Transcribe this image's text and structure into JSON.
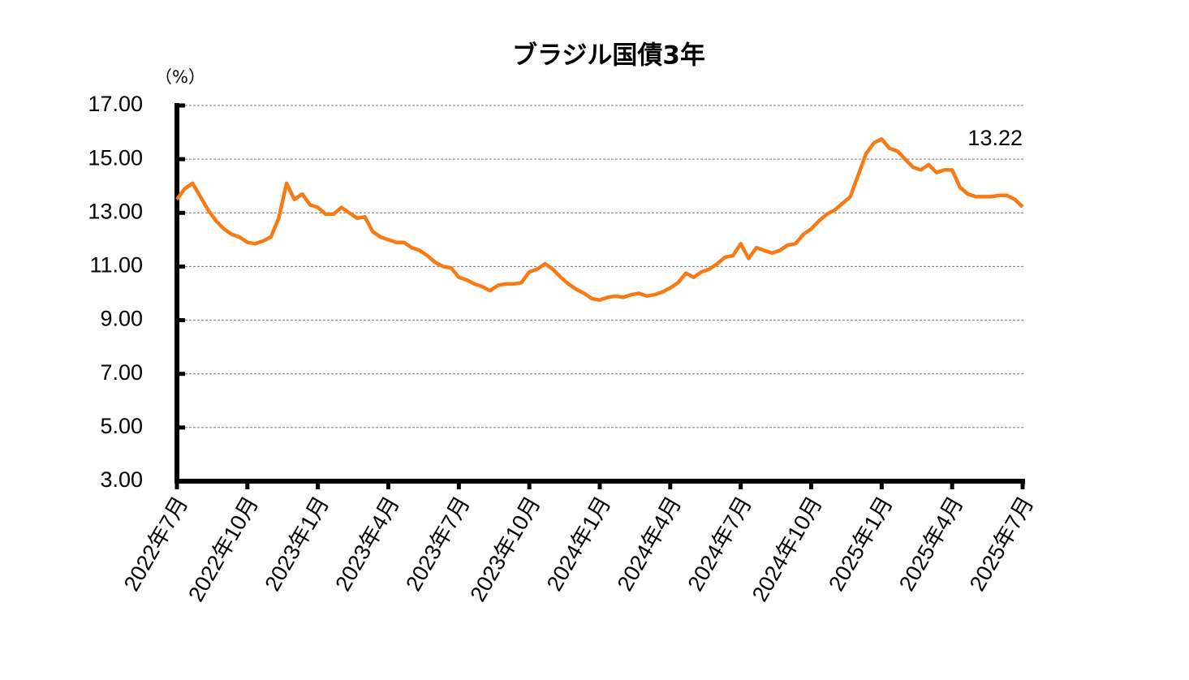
{
  "chart_data": {
    "type": "line",
    "title": "ブラジル国債3年",
    "ylabel": "（%）",
    "categories": [
      "2022年7月",
      null,
      null,
      null,
      null,
      null,
      null,
      null,
      null,
      "2022年10月",
      null,
      null,
      null,
      null,
      null,
      null,
      null,
      null,
      "2023年1月",
      null,
      null,
      null,
      null,
      null,
      null,
      null,
      null,
      "2023年4月",
      null,
      null,
      null,
      null,
      null,
      null,
      null,
      null,
      "2023年7月",
      null,
      null,
      null,
      null,
      null,
      null,
      null,
      null,
      "2023年10月",
      null,
      null,
      null,
      null,
      null,
      null,
      null,
      null,
      "2024年1月",
      null,
      null,
      null,
      null,
      null,
      null,
      null,
      null,
      "2024年4月",
      null,
      null,
      null,
      null,
      null,
      null,
      null,
      null,
      "2024年7月",
      null,
      null,
      null,
      null,
      null,
      null,
      null,
      null,
      "2024年10月",
      null,
      null,
      null,
      null,
      null,
      null,
      null,
      null,
      "2025年1月",
      null,
      null,
      null,
      null,
      null,
      null,
      null,
      null,
      "2025年4月",
      null,
      null,
      null,
      null,
      null,
      null,
      null,
      null,
      "2025年7月"
    ],
    "series": [
      {
        "color": "#f77a15",
        "values": [
          13.5,
          13.9,
          14.1,
          13.6,
          13.1,
          12.7,
          12.4,
          12.2,
          12.1,
          11.9,
          11.85,
          11.95,
          12.1,
          12.8,
          14.1,
          13.5,
          13.7,
          13.3,
          13.2,
          12.95,
          12.95,
          13.2,
          13.0,
          12.8,
          12.85,
          12.3,
          12.1,
          12.0,
          11.9,
          11.9,
          11.7,
          11.6,
          11.4,
          11.15,
          11.0,
          10.95,
          10.6,
          10.5,
          10.35,
          10.25,
          10.1,
          10.3,
          10.35,
          10.35,
          10.4,
          10.8,
          10.9,
          11.1,
          10.9,
          10.6,
          10.35,
          10.15,
          10.0,
          9.8,
          9.75,
          9.85,
          9.9,
          9.85,
          9.95,
          10.0,
          9.9,
          9.95,
          10.05,
          10.2,
          10.4,
          10.75,
          10.6,
          10.8,
          10.9,
          11.1,
          11.35,
          11.4,
          11.85,
          11.3,
          11.7,
          11.6,
          11.5,
          11.6,
          11.8,
          11.85,
          12.2,
          12.4,
          12.7,
          12.95,
          13.1,
          13.35,
          13.6,
          14.4,
          15.2,
          15.6,
          15.75,
          15.4,
          15.3,
          15.0,
          14.7,
          14.6,
          14.8,
          14.5,
          14.6,
          14.6,
          13.95,
          13.7,
          13.6,
          13.6,
          13.6,
          13.65,
          13.65,
          13.5,
          13.22
        ]
      }
    ],
    "ylim": [
      3,
      17
    ],
    "yticks": [
      {
        "value": 3,
        "label": "3.00"
      },
      {
        "value": 5,
        "label": "5.00"
      },
      {
        "value": 7,
        "label": "7.00"
      },
      {
        "value": 9,
        "label": "9.00"
      },
      {
        "value": 11,
        "label": "11.00"
      },
      {
        "value": 13,
        "label": "13.00"
      },
      {
        "value": 15,
        "label": "15.00"
      },
      {
        "value": 17,
        "label": "17.00"
      }
    ],
    "grid": true
  }
}
